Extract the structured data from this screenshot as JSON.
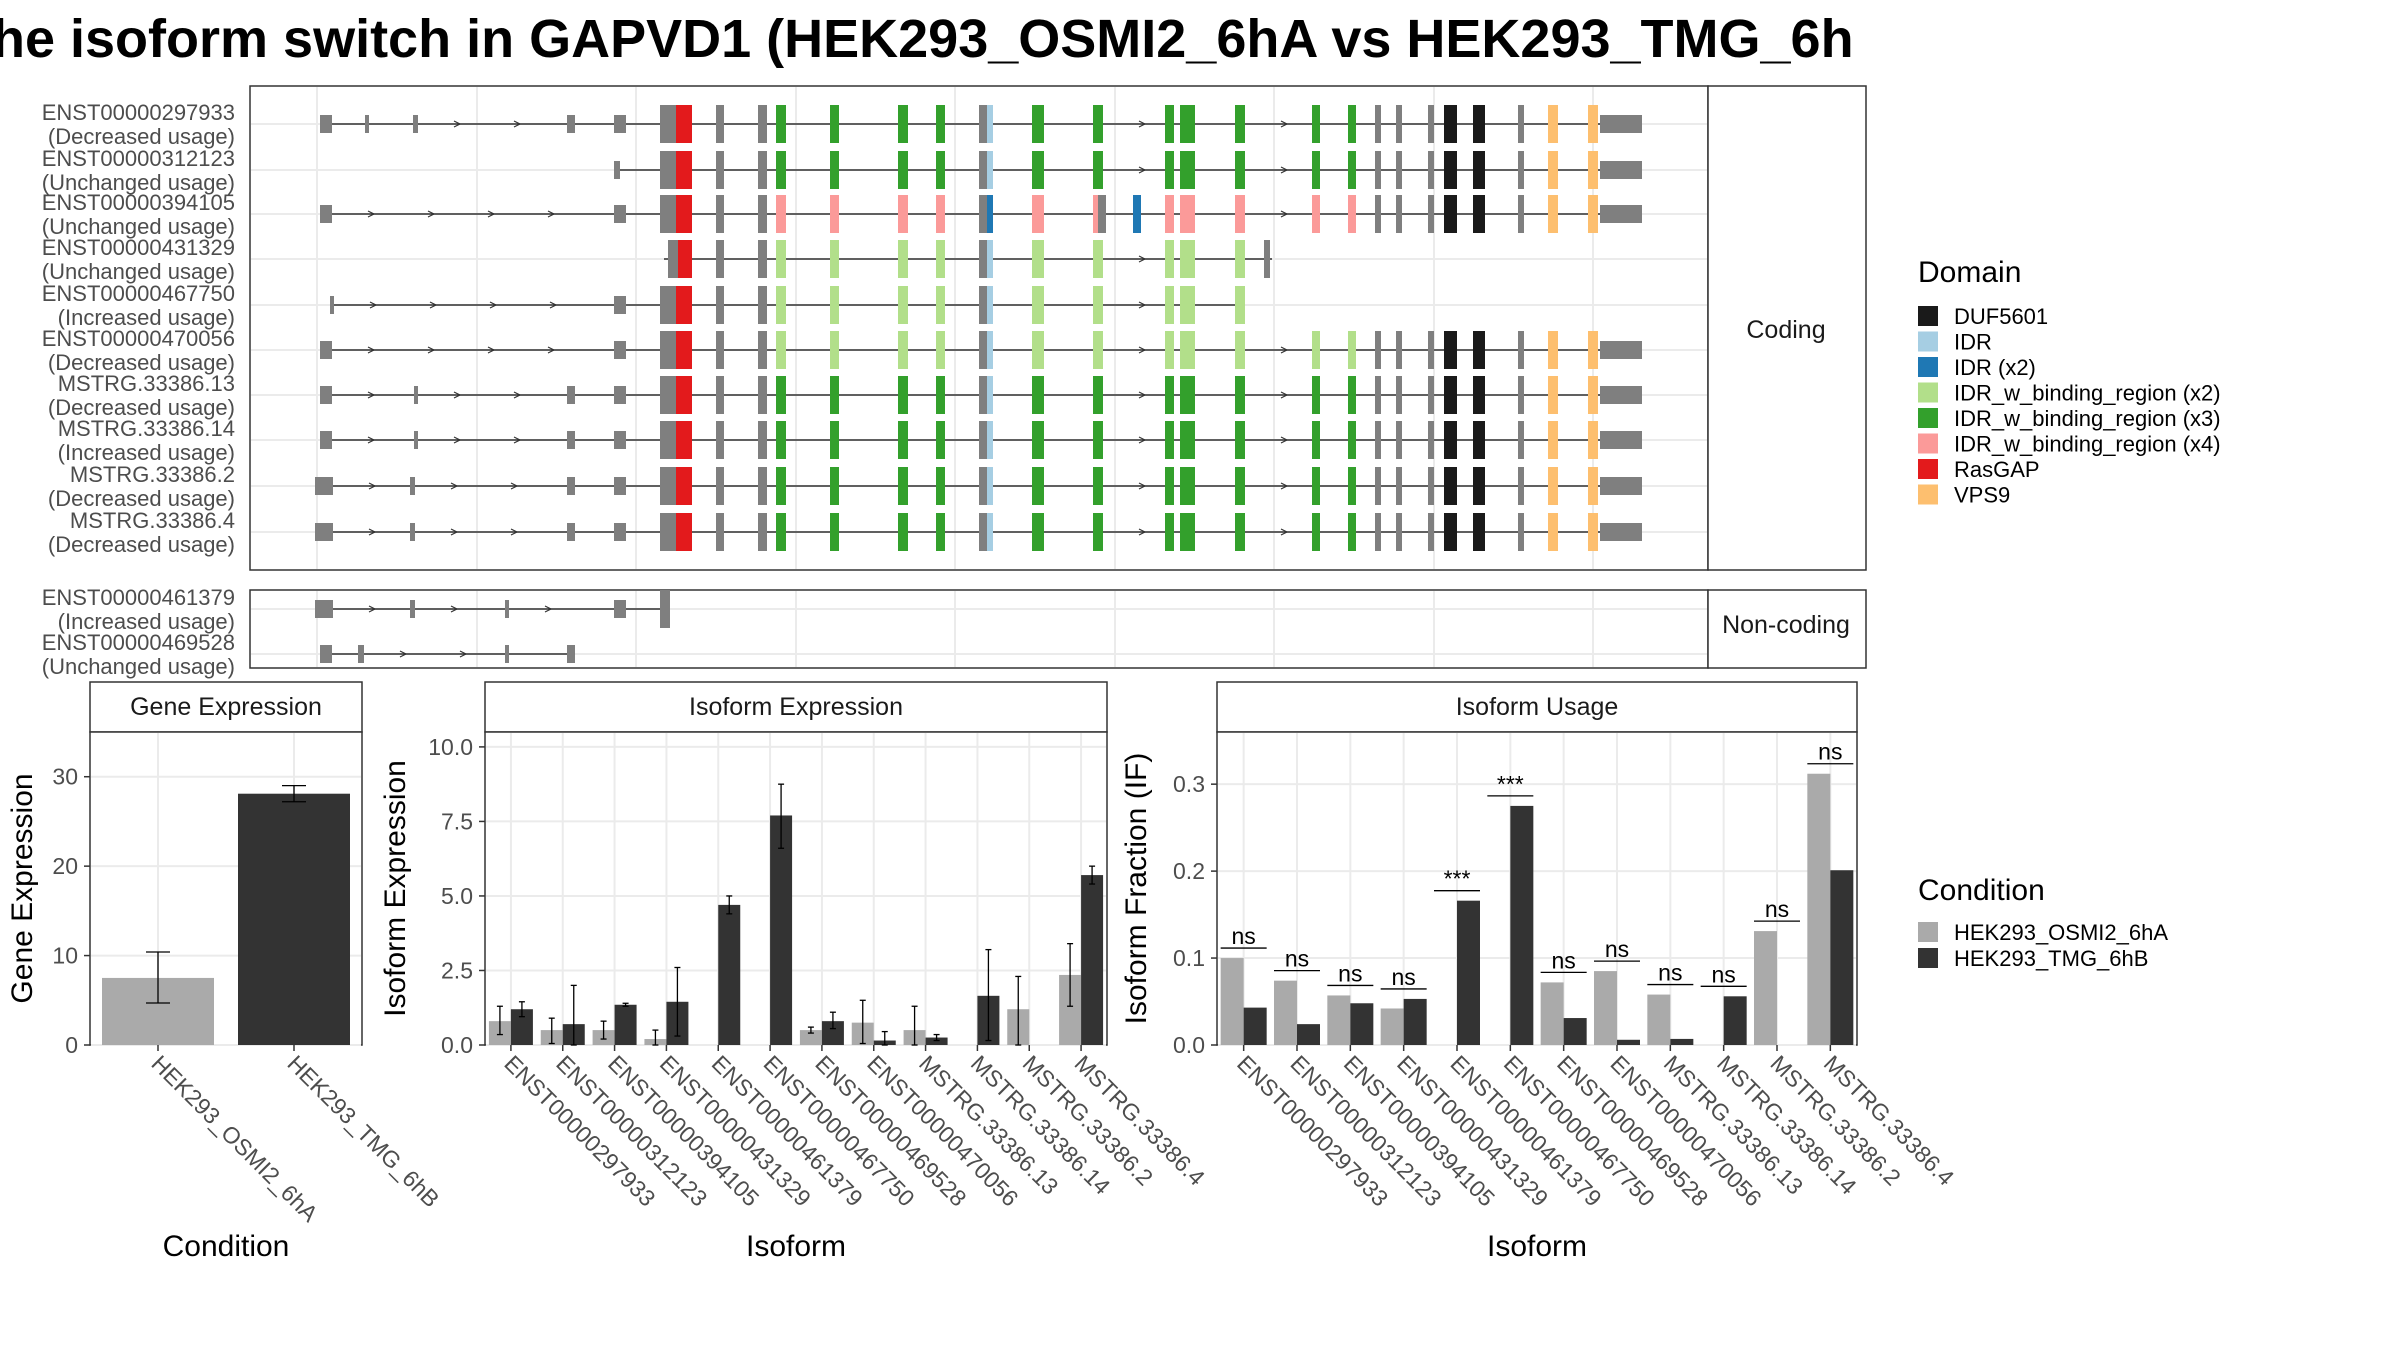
{
  "title": "he isoform switch in GAPVD1 (HEK293_OSMI2_6hA vs HEK293_TMG_6h",
  "colors": {
    "condition_a": "#AAAAAA",
    "condition_b": "#333333",
    "exon_grey": "#7F7F7F",
    "DUF5601": "#1A1A1A",
    "IDR": "#A6CEE3",
    "IDR (x2)": "#1F78B4",
    "IDR_w_binding_region (x2)": "#B2DF8A",
    "IDR_w_binding_region (x3)": "#33A02C",
    "IDR_w_binding_region (x4)": "#FB9A99",
    "RasGAP": "#E31A1C",
    "VPS9": "#FDBF6F"
  },
  "structure": {
    "coding_panel_label": "Coding",
    "noncoding_panel_label": "Non-coding",
    "coding": [
      {
        "id": "ENST00000297933",
        "usage": "(Decreased usage)",
        "type": "A"
      },
      {
        "id": "ENST00000312123",
        "usage": "(Unchanged usage)",
        "type": "B"
      },
      {
        "id": "ENST00000394105",
        "usage": "(Unchanged usage)",
        "type": "C"
      },
      {
        "id": "ENST00000431329",
        "usage": "(Unchanged usage)",
        "type": "D"
      },
      {
        "id": "ENST00000467750",
        "usage": "(Increased usage)",
        "type": "E"
      },
      {
        "id": "ENST00000470056",
        "usage": "(Decreased usage)",
        "type": "F"
      },
      {
        "id": "MSTRG.33386.13",
        "usage": "(Decreased usage)",
        "type": "G"
      },
      {
        "id": "MSTRG.33386.14",
        "usage": "(Increased usage)",
        "type": "G"
      },
      {
        "id": "MSTRG.33386.2",
        "usage": "(Decreased usage)",
        "type": "H"
      },
      {
        "id": "MSTRG.33386.4",
        "usage": "(Decreased usage)",
        "type": "H"
      }
    ],
    "noncoding": [
      {
        "id": "ENST00000461379",
        "usage": "(Increased usage)",
        "type": "N1"
      },
      {
        "id": "ENST00000469528",
        "usage": "(Unchanged usage)",
        "type": "N2"
      }
    ]
  },
  "legend_domain": {
    "title": "Domain",
    "items": [
      "DUF5601",
      "IDR",
      "IDR (x2)",
      "IDR_w_binding_region (x2)",
      "IDR_w_binding_region (x3)",
      "IDR_w_binding_region (x4)",
      "RasGAP",
      "VPS9"
    ]
  },
  "legend_condition": {
    "title": "Condition",
    "items": [
      "HEK293_OSMI2_6hA",
      "HEK293_TMG_6hB"
    ]
  },
  "chart_data": [
    {
      "type": "bar",
      "title": "Gene Expression",
      "xlabel": "Condition",
      "ylabel": "Gene Expression",
      "categories": [
        "HEK293_OSMI2_6hA",
        "HEK293_TMG_6hB"
      ],
      "values": [
        7.5,
        28.1
      ],
      "err_low": [
        4.7,
        27.2
      ],
      "err_high": [
        10.4,
        29.0
      ],
      "ylim": [
        0,
        35
      ],
      "yticks": [
        0,
        10,
        20,
        30
      ]
    },
    {
      "type": "bar",
      "title": "Isoform Expression",
      "xlabel": "Isoform",
      "ylabel": "Isoform Expression",
      "categories": [
        "ENST00000297933",
        "ENST00000312123",
        "ENST00000394105",
        "ENST00000431329",
        "ENST00000461379",
        "ENST00000467750",
        "ENST00000469528",
        "ENST00000470056",
        "MSTRG.33386.13",
        "MSTRG.33386.14",
        "MSTRG.33386.2",
        "MSTRG.33386.4"
      ],
      "series": [
        {
          "name": "HEK293_OSMI2_6hA",
          "values": [
            0.8,
            0.5,
            0.5,
            0.2,
            0.0,
            0.0,
            0.5,
            0.75,
            0.5,
            0.0,
            1.2,
            2.35
          ],
          "err_low": [
            0.35,
            0.05,
            0.2,
            0.0,
            0.0,
            0.0,
            0.4,
            0.05,
            0.0,
            0.0,
            0.0,
            1.3
          ],
          "err_high": [
            1.3,
            0.9,
            0.8,
            0.5,
            0.0,
            0.0,
            0.6,
            1.5,
            1.3,
            0.0,
            2.3,
            3.4
          ]
        },
        {
          "name": "HEK293_TMG_6hB",
          "values": [
            1.2,
            0.7,
            1.35,
            1.45,
            4.7,
            7.7,
            0.8,
            0.15,
            0.25,
            1.65,
            0.0,
            5.7
          ],
          "err_low": [
            0.95,
            0.0,
            1.3,
            0.3,
            4.4,
            6.6,
            0.55,
            0.0,
            0.15,
            0.15,
            0.0,
            5.4
          ],
          "err_high": [
            1.45,
            2.0,
            1.4,
            2.6,
            5.0,
            8.75,
            1.1,
            0.45,
            0.35,
            3.2,
            0.0,
            6.0
          ]
        }
      ],
      "ylim": [
        0,
        10.5
      ],
      "yticks": [
        "0.0",
        "2.5",
        "5.0",
        "7.5",
        "10.0"
      ]
    },
    {
      "type": "bar",
      "title": "Isoform Usage",
      "xlabel": "Isoform",
      "ylabel": "Isoform Fraction (IF)",
      "categories": [
        "ENST00000297933",
        "ENST00000312123",
        "ENST00000394105",
        "ENST00000431329",
        "ENST00000461379",
        "ENST00000467750",
        "ENST00000469528",
        "ENST00000470056",
        "MSTRG.33386.13",
        "MSTRG.33386.14",
        "MSTRG.33386.2",
        "MSTRG.33386.4"
      ],
      "series": [
        {
          "name": "HEK293_OSMI2_6hA",
          "values": [
            0.1,
            0.074,
            0.057,
            0.042,
            0.0,
            0.0,
            0.072,
            0.085,
            0.058,
            0.0,
            0.131,
            0.312
          ]
        },
        {
          "name": "HEK293_TMG_6hB",
          "values": [
            0.043,
            0.024,
            0.048,
            0.053,
            0.166,
            0.275,
            0.031,
            0.006,
            0.007,
            0.056,
            0.0,
            0.201
          ]
        }
      ],
      "significance": [
        "ns",
        "ns",
        "ns",
        "ns",
        "***",
        "***",
        "ns",
        "ns",
        "ns",
        "ns",
        "ns",
        "ns"
      ],
      "ylim": [
        0,
        0.36
      ],
      "yticks": [
        "0.0",
        "0.1",
        "0.2",
        "0.3"
      ]
    }
  ]
}
